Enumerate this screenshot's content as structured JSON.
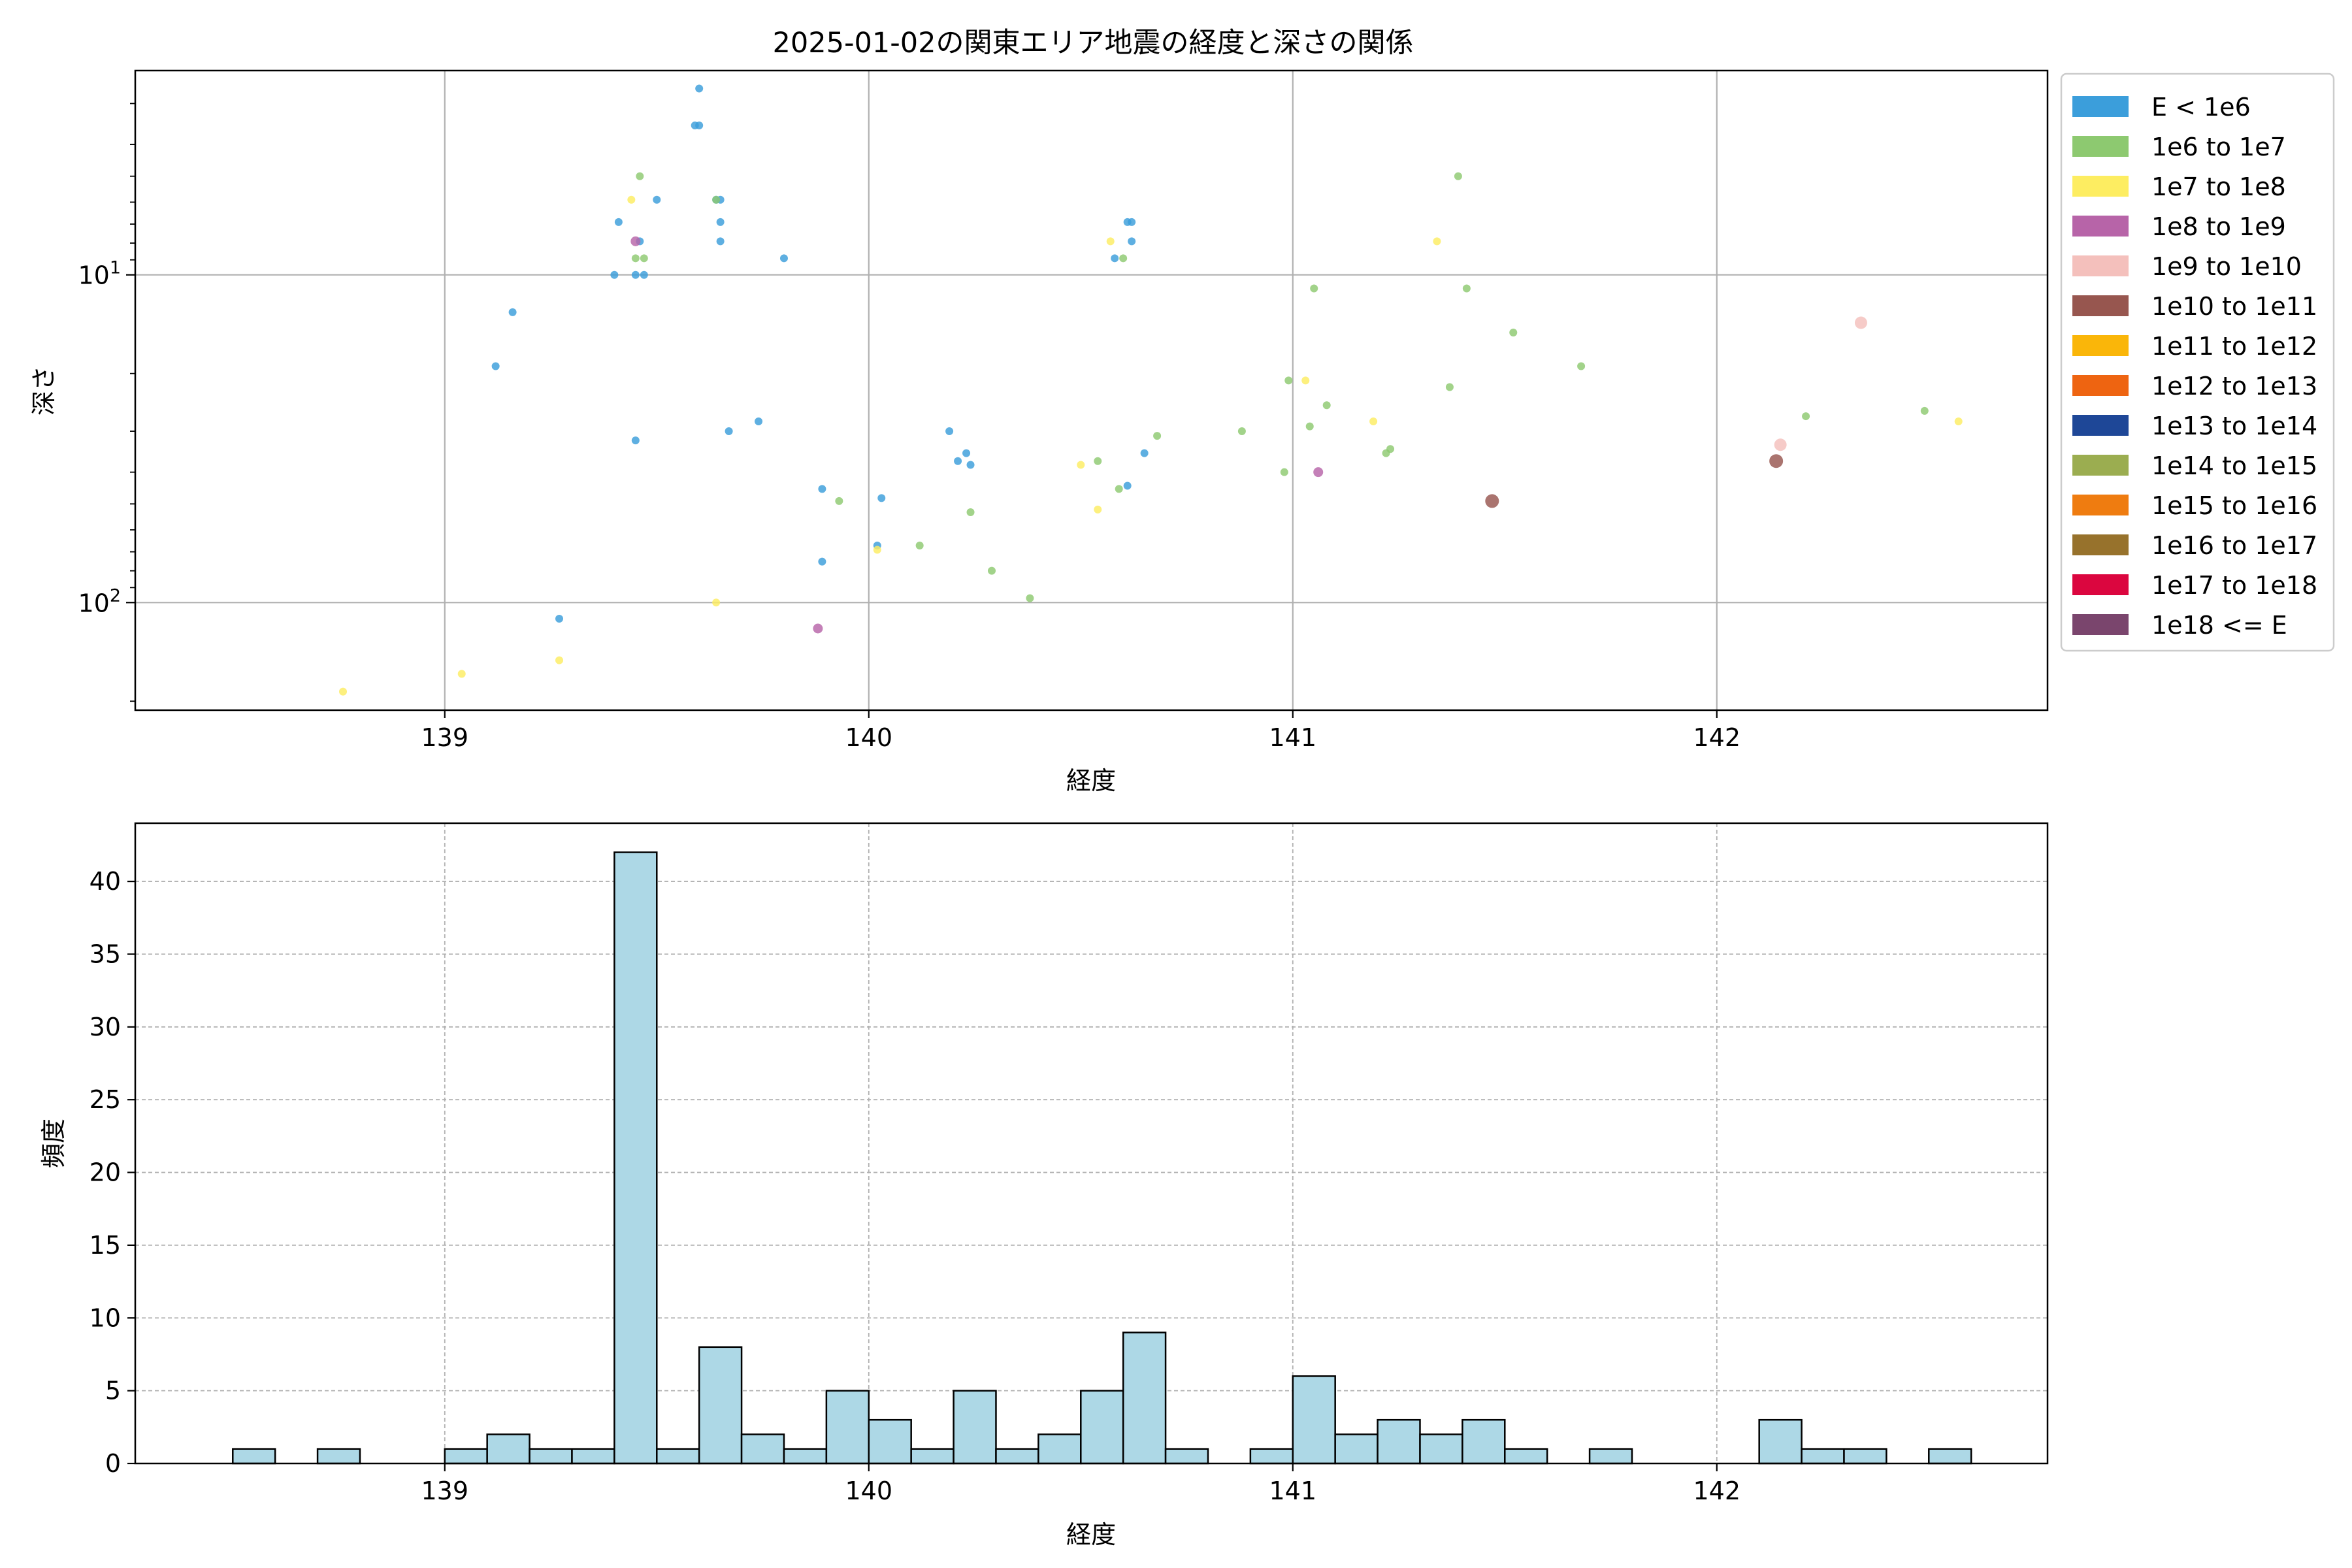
{
  "chart_data": [
    {
      "type": "scatter",
      "title": "2025-01-02の関東エリア地震の経度と深さの関係",
      "xlabel": "経度",
      "ylabel": "深さ",
      "x_scale": "linear",
      "y_scale": "log",
      "y_inverted": true,
      "xlim": [
        138.27,
        142.78
      ],
      "ylim": [
        213,
        2.38
      ],
      "xticks": [
        139,
        140,
        141,
        142
      ],
      "xtick_labels": [
        "139",
        "140",
        "141",
        "142"
      ],
      "yticks": [
        10,
        100
      ],
      "ytick_labels": [
        "10^1",
        "10^2"
      ],
      "grid": true,
      "legend": {
        "placement": "outside right",
        "entries": [
          {
            "label": "E < 1e6",
            "color": "#3b9edb"
          },
          {
            "label": "1e6 to 1e7",
            "color": "#8dc970"
          },
          {
            "label": "1e7 to 1e8",
            "color": "#fded61"
          },
          {
            "label": "1e8 to 1e9",
            "color": "#b764a8"
          },
          {
            "label": "1e9 to 1e10",
            "color": "#f4c0bc"
          },
          {
            "label": "1e10 to 1e11",
            "color": "#97564f"
          },
          {
            "label": "1e11 to 1e12",
            "color": "#fab609"
          },
          {
            "label": "1e12 to 1e13",
            "color": "#ee6411"
          },
          {
            "label": "1e13 to 1e14",
            "color": "#1e4797"
          },
          {
            "label": "1e14 to 1e15",
            "color": "#9bad50"
          },
          {
            "label": "1e15 to 1e16",
            "color": "#ef7c10"
          },
          {
            "label": "1e16 to 1e17",
            "color": "#97722c"
          },
          {
            "label": "1e17 to 1e18",
            "color": "#db063f"
          },
          {
            "label": "1e18 <= E",
            "color": "#7a456d"
          }
        ]
      },
      "series": [
        {
          "class": 0,
          "points": [
            [
              139.6,
              2.7
            ],
            [
              139.59,
              3.5
            ],
            [
              139.6,
              3.5
            ],
            [
              139.64,
              5.9
            ],
            [
              139.65,
              5.9
            ],
            [
              139.5,
              5.9
            ],
            [
              139.41,
              6.9
            ],
            [
              139.65,
              6.9
            ],
            [
              139.46,
              7.9
            ],
            [
              139.65,
              7.9
            ],
            [
              139.8,
              8.9
            ],
            [
              139.4,
              10
            ],
            [
              139.45,
              10
            ],
            [
              139.47,
              10
            ],
            [
              139.16,
              13
            ],
            [
              139.12,
              19
            ],
            [
              139.74,
              28
            ],
            [
              139.67,
              30
            ],
            [
              139.45,
              32
            ],
            [
              140.19,
              30
            ],
            [
              140.23,
              35
            ],
            [
              140.21,
              37
            ],
            [
              140.24,
              38
            ],
            [
              140.65,
              35
            ],
            [
              140.61,
              44
            ],
            [
              139.89,
              45
            ],
            [
              140.03,
              48
            ],
            [
              140.02,
              67
            ],
            [
              139.89,
              75
            ],
            [
              139.27,
              112
            ],
            [
              140.61,
              6.9
            ],
            [
              140.62,
              6.9
            ],
            [
              140.62,
              7.9
            ],
            [
              140.58,
              8.9
            ]
          ]
        },
        {
          "class": 1,
          "points": [
            [
              139.46,
              5.0
            ],
            [
              139.64,
              5.9
            ],
            [
              139.47,
              8.9
            ],
            [
              139.45,
              8.9
            ],
            [
              141.39,
              5.0
            ],
            [
              141.41,
              11
            ],
            [
              141.05,
              11
            ],
            [
              141.52,
              15
            ],
            [
              140.99,
              21
            ],
            [
              141.68,
              19
            ],
            [
              141.37,
              22
            ],
            [
              141.08,
              25
            ],
            [
              141.04,
              29
            ],
            [
              141.23,
              34
            ],
            [
              141.22,
              35
            ],
            [
              140.88,
              30
            ],
            [
              140.68,
              31
            ],
            [
              140.54,
              37
            ],
            [
              140.98,
              40
            ],
            [
              140.59,
              45
            ],
            [
              139.93,
              49
            ],
            [
              140.24,
              53
            ],
            [
              140.12,
              67
            ],
            [
              140.29,
              80
            ],
            [
              140.38,
              97
            ],
            [
              142.21,
              27
            ],
            [
              142.49,
              26
            ],
            [
              140.6,
              8.9
            ]
          ]
        },
        {
          "class": 2,
          "points": [
            [
              139.44,
              5.9
            ],
            [
              141.34,
              7.9
            ],
            [
              140.57,
              7.9
            ],
            [
              141.03,
              21
            ],
            [
              141.19,
              28
            ],
            [
              140.5,
              38
            ],
            [
              140.54,
              52
            ],
            [
              140.02,
              69
            ],
            [
              139.64,
              100
            ],
            [
              139.27,
              150
            ],
            [
              139.04,
              165
            ],
            [
              138.76,
              187
            ],
            [
              142.57,
              28
            ]
          ]
        },
        {
          "class": 3,
          "points": [
            [
              139.45,
              7.9
            ],
            [
              141.06,
              40
            ],
            [
              139.88,
              120
            ]
          ]
        },
        {
          "class": 4,
          "points": [
            [
              142.34,
              14
            ],
            [
              142.15,
              33
            ]
          ]
        },
        {
          "class": 5,
          "points": [
            [
              141.47,
              49
            ],
            [
              142.14,
              37
            ]
          ]
        }
      ]
    },
    {
      "type": "bar",
      "xlabel": "経度",
      "ylabel": "頻度",
      "xlim": [
        138.27,
        142.78
      ],
      "ylim": [
        0,
        44
      ],
      "xticks": [
        139,
        140,
        141,
        142
      ],
      "xtick_labels": [
        "139",
        "140",
        "141",
        "142"
      ],
      "yticks": [
        0,
        5,
        10,
        15,
        20,
        25,
        30,
        35,
        40
      ],
      "ytick_labels": [
        "0",
        "5",
        "10",
        "15",
        "20",
        "25",
        "30",
        "35",
        "40"
      ],
      "grid": true,
      "bar_color": "#add8e6",
      "bin_start": 138.5,
      "bin_width": 0.1,
      "values": [
        1,
        0,
        1,
        0,
        0,
        1,
        2,
        1,
        1,
        42,
        1,
        8,
        2,
        1,
        5,
        3,
        1,
        5,
        1,
        2,
        5,
        9,
        1,
        0,
        1,
        6,
        2,
        3,
        2,
        3,
        1,
        0,
        1,
        0,
        0,
        0,
        3,
        1,
        1,
        0,
        1
      ]
    }
  ]
}
